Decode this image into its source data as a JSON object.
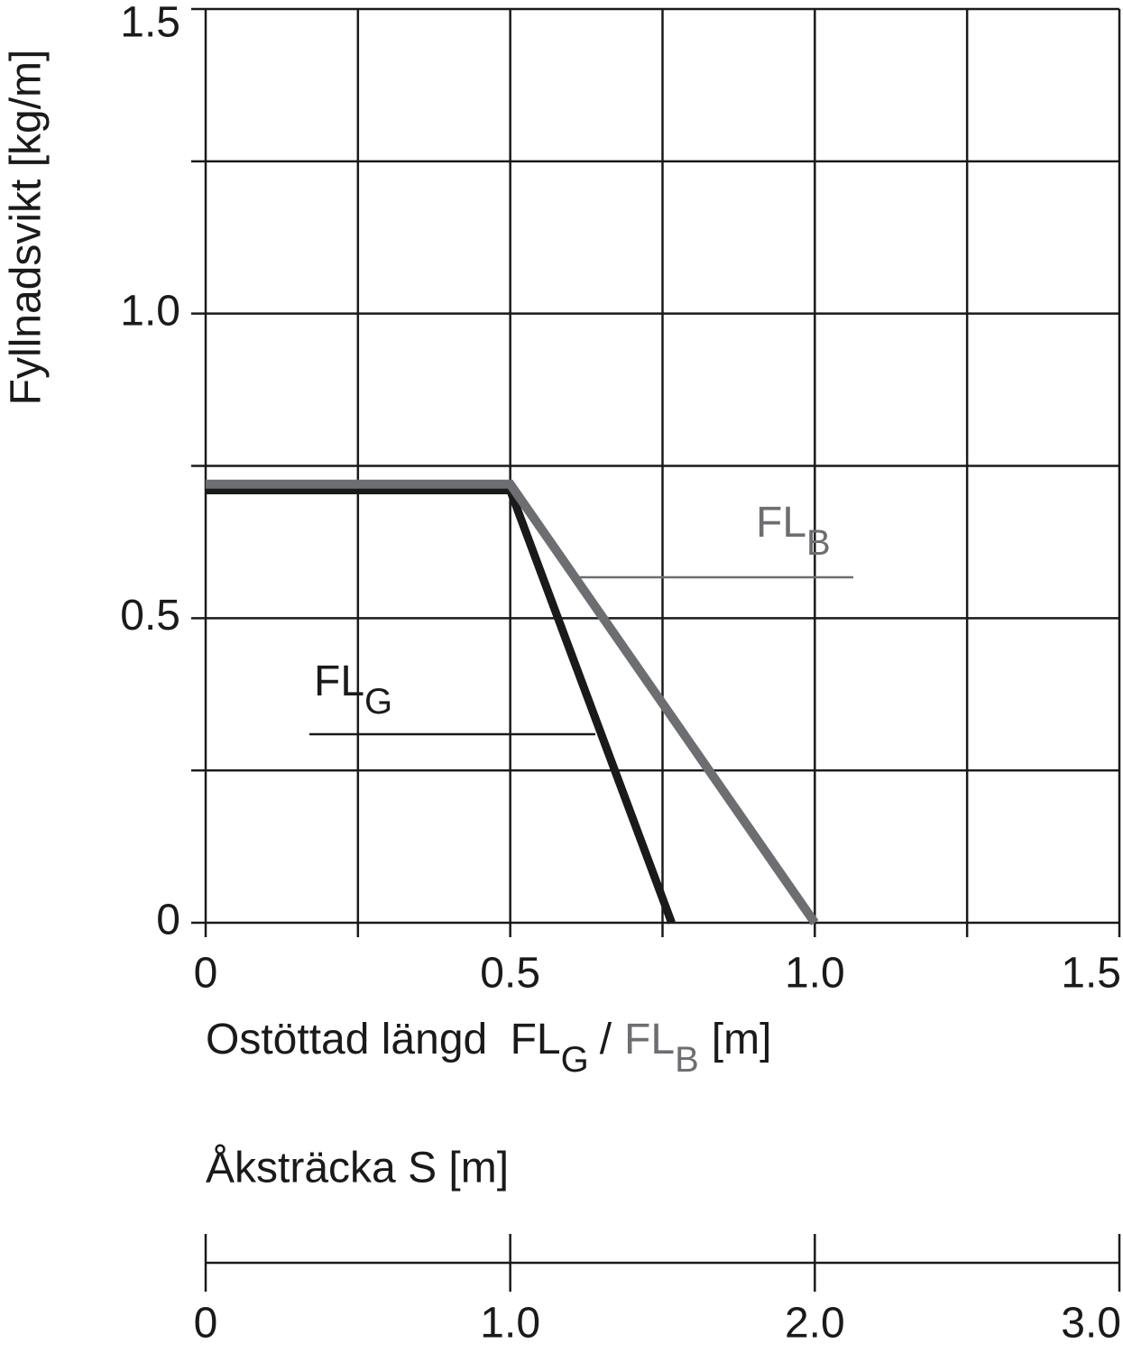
{
  "chart_data": {
    "type": "line",
    "ylabel": "Fyllnadsvikt  [kg/m]",
    "xlabel": {
      "prefix": "Ostöttad längd",
      "separator": "/",
      "unit": "[m]"
    },
    "xlim": [
      0,
      1.5
    ],
    "ylim": [
      0,
      1.5
    ],
    "xticks": [
      0,
      {
        "value": 0.5,
        "label": "0.5"
      },
      {
        "value": 1,
        "label": "1.0"
      },
      {
        "value": 1.5,
        "label": "1.5"
      }
    ],
    "yticks": [
      0,
      {
        "value": 0.5,
        "label": "0.5"
      },
      {
        "value": 1,
        "label": "1.0"
      },
      {
        "value": 1.5,
        "label": "1.5"
      }
    ],
    "xgrid": [
      0.25,
      0.75,
      1.25
    ],
    "ygrid": [
      0.25,
      0.75,
      1.25
    ],
    "grid": true,
    "series": [
      {
        "name": "FL",
        "subscript": "G",
        "color": "#1a1a1a",
        "x": [
          0,
          0.5,
          0.765
        ],
        "values": [
          0.71,
          0.71,
          0
        ]
      },
      {
        "name": "FL",
        "subscript": "B",
        "color": "#6d6e71",
        "x": [
          0,
          0.5,
          1
        ],
        "values": [
          0.72,
          0.72,
          0
        ]
      }
    ],
    "secondary_x": {
      "label": "Åksträcka  S [m]",
      "lim": [
        0,
        3
      ],
      "ticks": [
        0,
        {
          "value": 1,
          "label": "1.0"
        },
        {
          "value": 2,
          "label": "2.0"
        },
        {
          "value": 3,
          "label": "3.0"
        }
      ]
    }
  }
}
